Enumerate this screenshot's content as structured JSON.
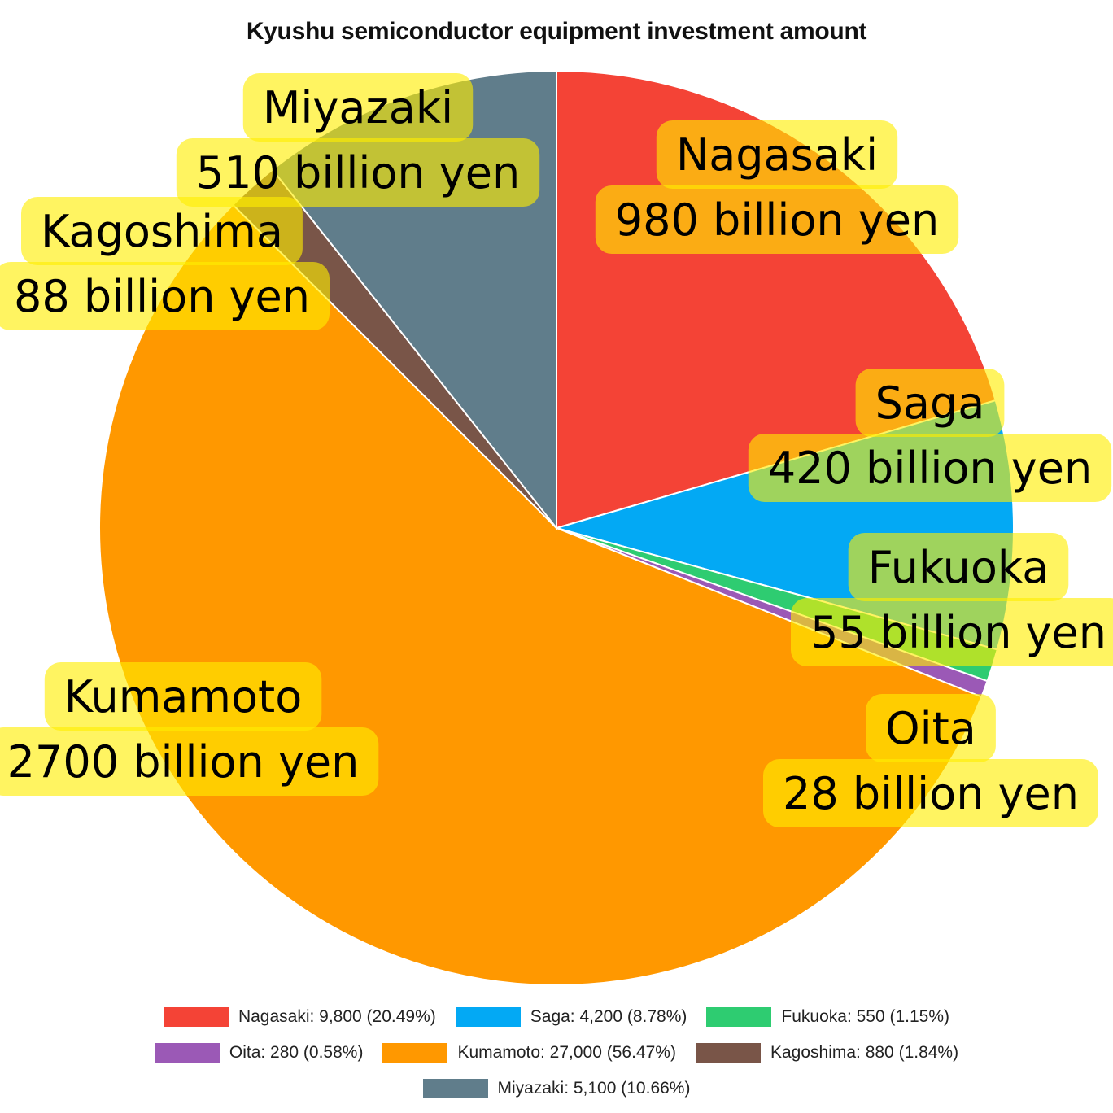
{
  "chart_data": {
    "type": "pie",
    "title": "Kyushu semiconductor equipment investment amount",
    "slices": [
      {
        "name": "Nagasaki",
        "value": 9800,
        "legend": "Nagasaki: 9,800 (20.49%)",
        "label_line1": "Nagasaki",
        "label_line2": "980 billion yen",
        "color": "#F44336"
      },
      {
        "name": "Saga",
        "value": 4200,
        "legend": "Saga: 4,200 (8.78%)",
        "label_line1": "Saga",
        "label_line2": "420 billion yen",
        "color": "#03A9F4"
      },
      {
        "name": "Fukuoka",
        "value": 550,
        "legend": "Fukuoka: 550 (1.15%)",
        "label_line1": "Fukuoka",
        "label_line2": "55 billion yen",
        "color": "#2ECC71"
      },
      {
        "name": "Oita",
        "value": 280,
        "legend": "Oita: 280 (0.58%)",
        "label_line1": "Oita",
        "label_line2": "28 billion yen",
        "color": "#9B59B6"
      },
      {
        "name": "Kumamoto",
        "value": 27000,
        "legend": "Kumamoto: 27,000 (56.47%)",
        "label_line1": "Kumamoto",
        "label_line2": "2700 billion yen",
        "color": "#FF9800"
      },
      {
        "name": "Kagoshima",
        "value": 880,
        "legend": "Kagoshima: 880 (1.84%)",
        "label_line1": "Kagoshima",
        "label_line2": "88 billion yen",
        "color": "#795548"
      },
      {
        "name": "Miyazaki",
        "value": 5100,
        "legend": "Miyazaki: 5,100 (10.66%)",
        "label_line1": "Miyazaki",
        "label_line2": "510 billion yen",
        "color": "#607D8B"
      }
    ],
    "start_angle": "top",
    "direction": "clockwise",
    "label_color": "#FFEE00",
    "legend_position": "bottom",
    "legend_rows": [
      [
        0,
        1,
        2
      ],
      [
        3,
        4,
        5
      ],
      [
        6
      ]
    ]
  }
}
